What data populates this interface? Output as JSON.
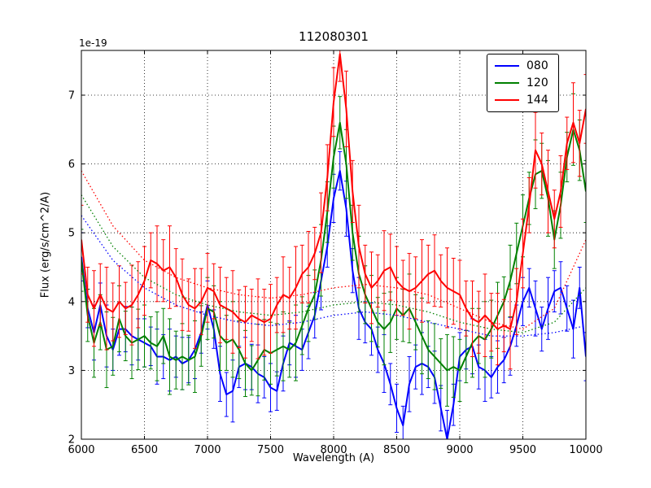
{
  "chart_data": {
    "type": "line",
    "title": "112080301",
    "xlabel": "Wavelength (A)",
    "ylabel": "Flux (erg/s/cm^2/A)",
    "offset_text": "1e-19",
    "xlim": [
      6000,
      10000
    ],
    "ylim": [
      2,
      7.65
    ],
    "xticks": [
      6000,
      6500,
      7000,
      7500,
      8000,
      8500,
      9000,
      9500,
      10000
    ],
    "yticks": [
      2,
      3,
      4,
      5,
      6,
      7
    ],
    "grid": true,
    "grid_style": "dotted",
    "grid_color": "#000000",
    "frame_color": "#000000",
    "background": "#ffffff",
    "legend_position": "upper right",
    "x": [
      6000,
      6050,
      6100,
      6150,
      6200,
      6250,
      6300,
      6350,
      6400,
      6450,
      6500,
      6550,
      6600,
      6650,
      6700,
      6750,
      6800,
      6850,
      6900,
      6950,
      7000,
      7050,
      7100,
      7150,
      7200,
      7250,
      7300,
      7350,
      7400,
      7450,
      7500,
      7550,
      7600,
      7650,
      7700,
      7750,
      7800,
      7850,
      7900,
      7950,
      8000,
      8050,
      8100,
      8150,
      8200,
      8250,
      8300,
      8350,
      8400,
      8450,
      8500,
      8550,
      8600,
      8650,
      8700,
      8750,
      8800,
      8850,
      8900,
      8950,
      9000,
      9050,
      9100,
      9150,
      9200,
      9250,
      9300,
      9350,
      9400,
      9450,
      9500,
      9550,
      9600,
      9650,
      9700,
      9750,
      9800,
      9850,
      9900,
      9950,
      10000
    ],
    "series": [
      {
        "name": "080",
        "color": "#0000ff",
        "style": "solid",
        "values": [
          4.65,
          3.9,
          3.55,
          3.95,
          3.5,
          3.3,
          3.6,
          3.6,
          3.5,
          3.45,
          3.4,
          3.35,
          3.2,
          3.2,
          3.15,
          3.2,
          3.1,
          3.15,
          3.3,
          3.55,
          3.95,
          3.6,
          2.95,
          2.65,
          2.7,
          3.05,
          3.1,
          3.05,
          2.95,
          2.9,
          2.75,
          2.7,
          3.1,
          3.4,
          3.35,
          3.3,
          3.55,
          3.8,
          4.3,
          4.8,
          5.5,
          5.9,
          5.35,
          4.45,
          3.9,
          3.7,
          3.6,
          3.3,
          3.1,
          2.8,
          2.45,
          2.2,
          2.8,
          3.05,
          3.1,
          3.05,
          2.9,
          2.45,
          2.0,
          2.5,
          3.2,
          3.3,
          3.35,
          3.05,
          3.0,
          2.9,
          3.05,
          3.15,
          3.35,
          3.65,
          4.0,
          4.2,
          3.9,
          3.6,
          3.9,
          4.15,
          4.2,
          3.9,
          3.6,
          4.2,
          3.2
        ],
        "errors": [
          0.35,
          0.28,
          0.4,
          0.32,
          0.45,
          0.3,
          0.38,
          0.33,
          0.42,
          0.3,
          0.35,
          0.28,
          0.4,
          0.32,
          0.45,
          0.3,
          0.38,
          0.33,
          0.42,
          0.3,
          0.35,
          0.28,
          0.4,
          0.32,
          0.45,
          0.3,
          0.38,
          0.33,
          0.42,
          0.3,
          0.35,
          0.28,
          0.4,
          0.32,
          0.45,
          0.3,
          0.38,
          0.33,
          0.42,
          0.3,
          0.35,
          0.28,
          0.4,
          0.32,
          0.45,
          0.3,
          0.38,
          0.33,
          0.42,
          0.3,
          0.35,
          0.28,
          0.4,
          0.32,
          0.45,
          0.3,
          0.38,
          0.33,
          0.42,
          0.3,
          0.35,
          0.28,
          0.4,
          0.32,
          0.45,
          0.3,
          0.38,
          0.33,
          0.42,
          0.3,
          0.35,
          0.28,
          0.4,
          0.32,
          0.45,
          0.3,
          0.38,
          0.33,
          0.42,
          0.3,
          0.35
        ]
      },
      {
        "name": "120",
        "color": "#008000",
        "style": "solid",
        "values": [
          4.6,
          3.8,
          3.4,
          3.7,
          3.3,
          3.35,
          3.75,
          3.5,
          3.4,
          3.45,
          3.5,
          3.4,
          3.35,
          3.5,
          3.2,
          3.15,
          3.2,
          3.15,
          3.2,
          3.5,
          3.9,
          3.85,
          3.5,
          3.4,
          3.45,
          3.3,
          3.1,
          3.0,
          3.15,
          3.3,
          3.25,
          3.3,
          3.35,
          3.3,
          3.4,
          3.65,
          3.9,
          4.1,
          4.6,
          5.3,
          6.1,
          6.6,
          6.0,
          5.0,
          4.4,
          4.1,
          3.9,
          3.7,
          3.6,
          3.7,
          3.9,
          3.8,
          3.9,
          3.7,
          3.5,
          3.3,
          3.2,
          3.1,
          3.0,
          3.05,
          3.0,
          3.2,
          3.4,
          3.5,
          3.45,
          3.6,
          3.8,
          4.0,
          4.3,
          4.7,
          5.1,
          5.5,
          5.85,
          5.9,
          5.5,
          4.9,
          5.4,
          6.1,
          6.5,
          6.2,
          5.6
        ],
        "errors": [
          0.45,
          0.38,
          0.5,
          0.4,
          0.55,
          0.42,
          0.48,
          0.36,
          0.52,
          0.44,
          0.45,
          0.38,
          0.5,
          0.4,
          0.55,
          0.42,
          0.48,
          0.36,
          0.52,
          0.44,
          0.45,
          0.38,
          0.5,
          0.4,
          0.55,
          0.42,
          0.48,
          0.36,
          0.52,
          0.44,
          0.45,
          0.38,
          0.5,
          0.4,
          0.55,
          0.42,
          0.48,
          0.36,
          0.52,
          0.44,
          0.45,
          0.38,
          0.5,
          0.4,
          0.55,
          0.42,
          0.48,
          0.36,
          0.52,
          0.44,
          0.45,
          0.38,
          0.5,
          0.4,
          0.55,
          0.42,
          0.48,
          0.36,
          0.52,
          0.44,
          0.45,
          0.38,
          0.5,
          0.4,
          0.55,
          0.42,
          0.48,
          0.36,
          0.52,
          0.44,
          0.45,
          0.38,
          0.5,
          0.4,
          0.55,
          0.42,
          0.48,
          0.36,
          0.52,
          0.44,
          0.45
        ]
      },
      {
        "name": "144",
        "color": "#ff0000",
        "style": "solid",
        "values": [
          4.9,
          4.1,
          3.9,
          4.1,
          3.9,
          3.85,
          4.0,
          3.9,
          3.95,
          4.1,
          4.3,
          4.6,
          4.55,
          4.45,
          4.5,
          4.35,
          4.1,
          3.95,
          3.9,
          4.0,
          4.2,
          4.15,
          3.95,
          3.9,
          3.85,
          3.75,
          3.7,
          3.8,
          3.75,
          3.7,
          3.75,
          3.95,
          4.1,
          4.05,
          4.2,
          4.4,
          4.5,
          4.7,
          5.0,
          5.8,
          6.9,
          7.6,
          6.8,
          5.6,
          4.8,
          4.4,
          4.2,
          4.3,
          4.45,
          4.5,
          4.3,
          4.2,
          4.15,
          4.2,
          4.3,
          4.4,
          4.45,
          4.3,
          4.2,
          4.15,
          4.1,
          3.9,
          3.75,
          3.7,
          3.8,
          3.7,
          3.6,
          3.65,
          3.6,
          4.0,
          4.7,
          5.4,
          6.2,
          6.0,
          5.6,
          5.2,
          5.6,
          6.3,
          6.6,
          6.3,
          6.8
        ],
        "errors": [
          0.5,
          0.4,
          0.55,
          0.45,
          0.6,
          0.42,
          0.52,
          0.38,
          0.58,
          0.48,
          0.5,
          0.4,
          0.55,
          0.45,
          0.6,
          0.42,
          0.52,
          0.38,
          0.58,
          0.48,
          0.5,
          0.4,
          0.55,
          0.45,
          0.6,
          0.42,
          0.52,
          0.38,
          0.58,
          0.48,
          0.5,
          0.4,
          0.55,
          0.45,
          0.6,
          0.42,
          0.52,
          0.38,
          0.58,
          0.48,
          0.5,
          0.4,
          0.55,
          0.45,
          0.6,
          0.42,
          0.52,
          0.38,
          0.58,
          0.48,
          0.5,
          0.4,
          0.55,
          0.45,
          0.6,
          0.42,
          0.52,
          0.38,
          0.58,
          0.48,
          0.5,
          0.4,
          0.55,
          0.45,
          0.6,
          0.42,
          0.52,
          0.38,
          0.58,
          0.48,
          0.5,
          0.4,
          0.55,
          0.45,
          0.6,
          0.42,
          0.52,
          0.38,
          0.58,
          0.48,
          0.5
        ]
      },
      {
        "name": "080-fit",
        "color": "#0000ff",
        "style": "dotted",
        "x": [
          6000,
          6250,
          6500,
          6750,
          7000,
          7250,
          7500,
          7750,
          8000,
          8250,
          8500,
          8750,
          9000,
          9250,
          9500,
          9750,
          10000
        ],
        "values": [
          5.25,
          4.6,
          4.2,
          3.95,
          3.8,
          3.7,
          3.65,
          3.7,
          3.8,
          3.85,
          3.8,
          3.7,
          3.6,
          3.5,
          3.5,
          3.55,
          3.65
        ]
      },
      {
        "name": "120-fit",
        "color": "#008000",
        "style": "dotted",
        "x": [
          6000,
          6250,
          6500,
          6750,
          7000,
          7250,
          7500,
          7750,
          8000,
          8250,
          8500,
          8750,
          9000,
          9250,
          9500,
          9750,
          10000
        ],
        "values": [
          5.55,
          4.8,
          4.35,
          4.1,
          3.95,
          3.85,
          3.8,
          3.85,
          3.95,
          4.0,
          3.95,
          3.85,
          3.7,
          3.6,
          3.55,
          3.7,
          4.2
        ]
      },
      {
        "name": "144-fit",
        "color": "#ff0000",
        "style": "dotted",
        "x": [
          6000,
          6250,
          6500,
          6750,
          7000,
          7250,
          7500,
          7750,
          8000,
          8250,
          8500,
          8750,
          9000,
          9250,
          9500,
          9750,
          10000
        ],
        "values": [
          5.9,
          5.1,
          4.6,
          4.35,
          4.2,
          4.1,
          4.05,
          4.1,
          4.2,
          4.25,
          4.2,
          4.1,
          3.9,
          3.7,
          3.6,
          3.9,
          4.9
        ]
      }
    ],
    "legend_labels": [
      "080",
      "120",
      "144"
    ]
  }
}
